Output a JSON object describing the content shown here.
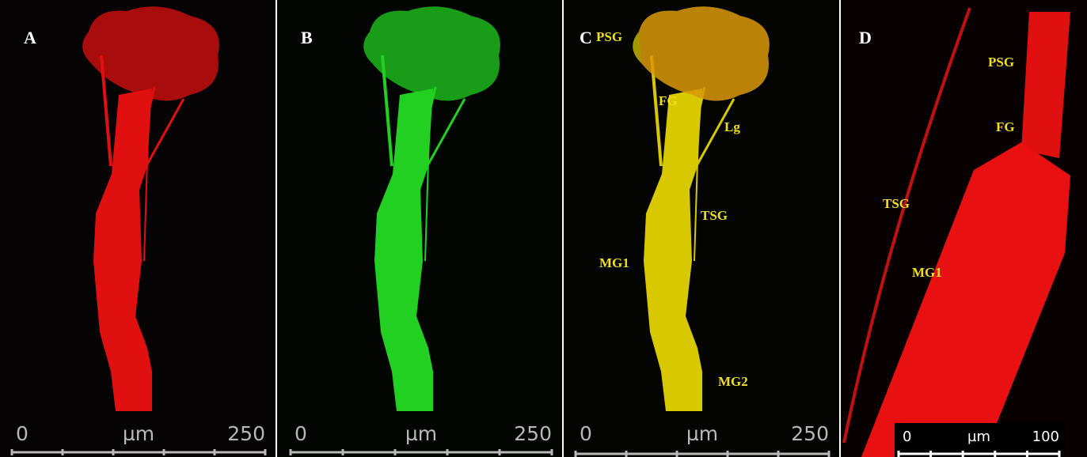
{
  "panels": [
    {
      "label": "A",
      "scale_bar": {
        "start": "0",
        "unit": "µm",
        "end": "250"
      }
    },
    {
      "label": "B",
      "scale_bar": {
        "start": "0",
        "unit": "µm",
        "end": "250"
      }
    },
    {
      "label": "C",
      "scale_bar": {
        "start": "0",
        "unit": "µm",
        "end": "250"
      },
      "annotations": [
        "PSG",
        "FG",
        "Lg",
        "TSG",
        "MG1",
        "MG2"
      ]
    },
    {
      "label": "D",
      "scale_bar": {
        "start": "0",
        "unit": "µm",
        "end": "100"
      },
      "annotations": [
        "PSG",
        "FG",
        "TSG",
        "MG1"
      ]
    }
  ]
}
